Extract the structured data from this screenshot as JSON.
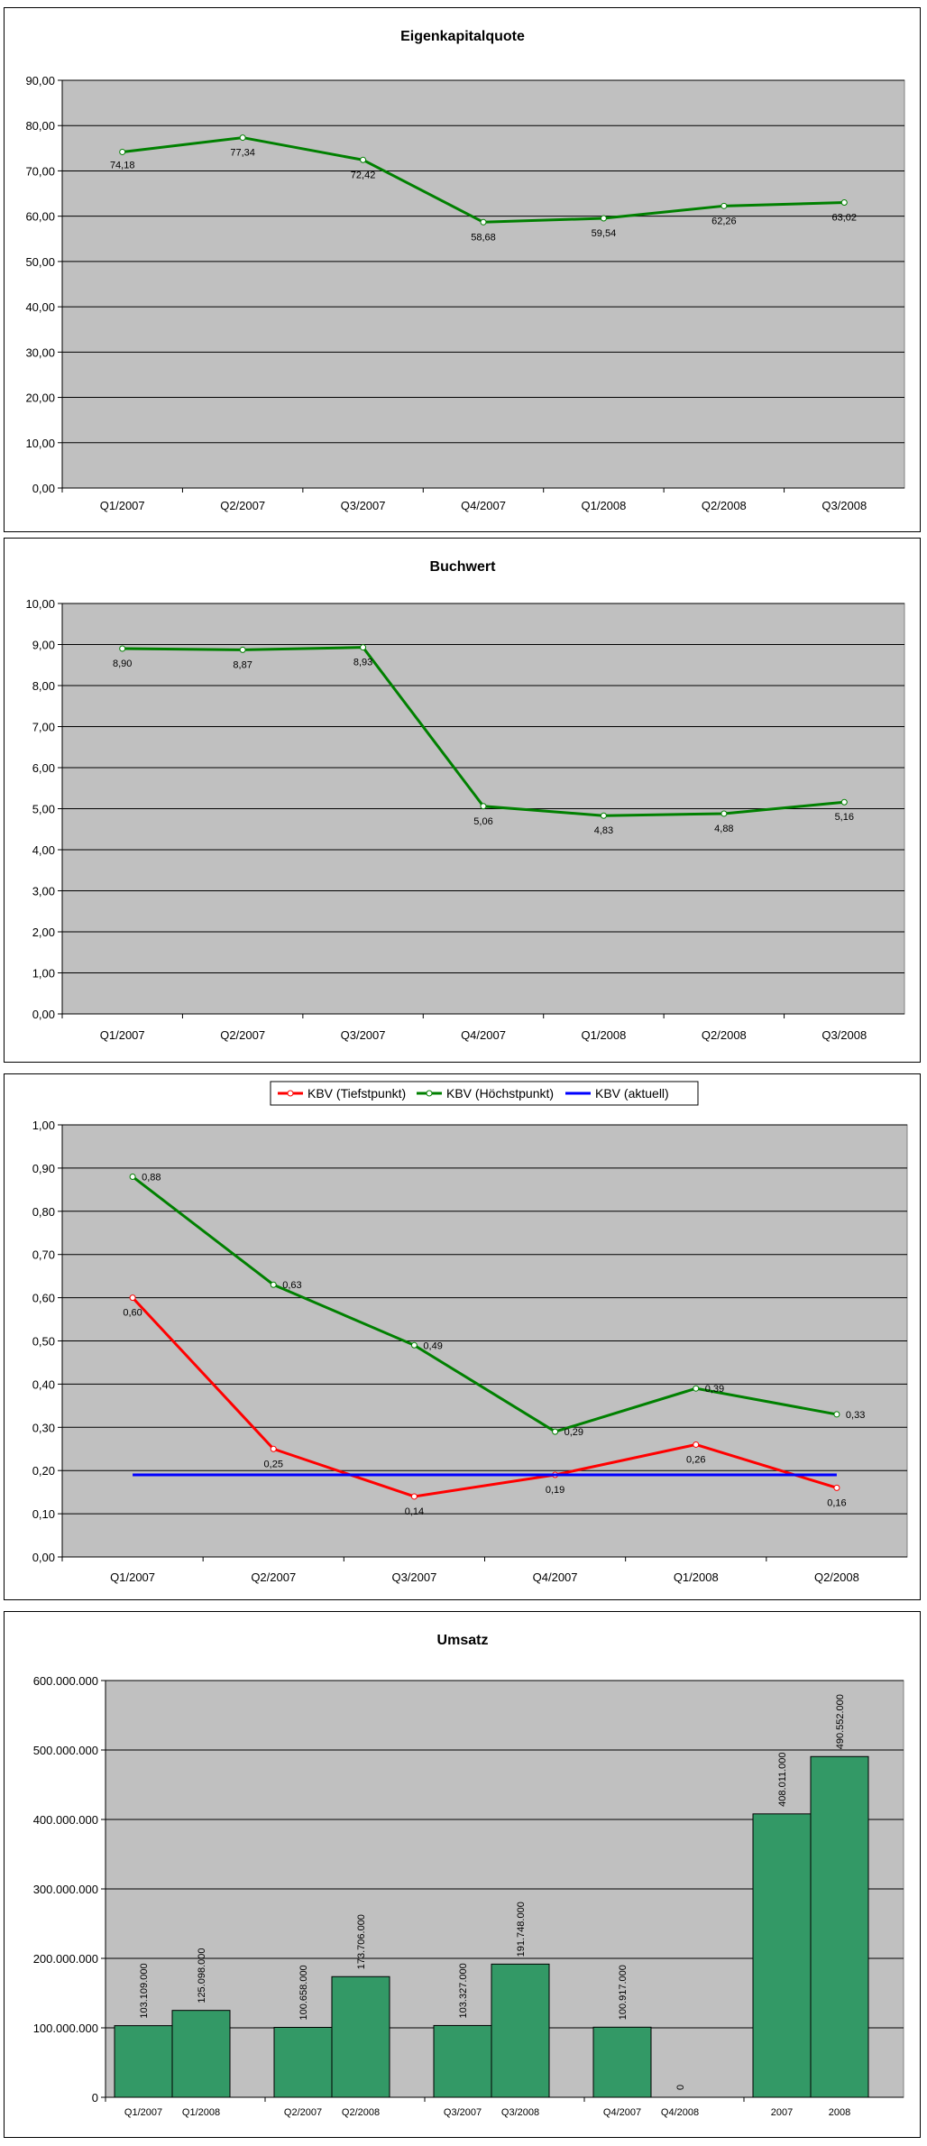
{
  "chart_data": [
    {
      "type": "line",
      "title": "Eigenkapitalquote",
      "categories": [
        "Q1/2007",
        "Q2/2007",
        "Q3/2007",
        "Q4/2007",
        "Q1/2008",
        "Q2/2008",
        "Q3/2008"
      ],
      "series": [
        {
          "values": [
            74.18,
            77.34,
            72.42,
            58.68,
            59.54,
            62.26,
            63.02
          ],
          "labels": [
            "74,18",
            "77,34",
            "72,42",
            "58,68",
            "59,54",
            "62,26",
            "63,02"
          ],
          "color": "#008000"
        }
      ],
      "ylim": [
        0,
        90
      ],
      "yticks": [
        "0,00",
        "10,00",
        "20,00",
        "30,00",
        "40,00",
        "50,00",
        "60,00",
        "70,00",
        "80,00",
        "90,00"
      ],
      "grid": true,
      "plot_bg": "#c0c0c0"
    },
    {
      "type": "line",
      "title": "Buchwert",
      "categories": [
        "Q1/2007",
        "Q2/2007",
        "Q3/2007",
        "Q4/2007",
        "Q1/2008",
        "Q2/2008",
        "Q3/2008"
      ],
      "series": [
        {
          "values": [
            8.9,
            8.87,
            8.93,
            5.06,
            4.83,
            4.88,
            5.16
          ],
          "labels": [
            "8,90",
            "8,87",
            "8,93",
            "5,06",
            "4,83",
            "4,88",
            "5,16"
          ],
          "color": "#008000"
        }
      ],
      "ylim": [
        0,
        10
      ],
      "yticks": [
        "0,00",
        "1,00",
        "2,00",
        "3,00",
        "4,00",
        "5,00",
        "6,00",
        "7,00",
        "8,00",
        "9,00",
        "10,00"
      ],
      "grid": true,
      "plot_bg": "#c0c0c0"
    },
    {
      "type": "line",
      "title": "",
      "categories": [
        "Q1/2007",
        "Q2/2007",
        "Q3/2007",
        "Q4/2007",
        "Q1/2008",
        "Q2/2008"
      ],
      "series": [
        {
          "name": "KBV (Tiefstpunkt)",
          "values": [
            0.6,
            0.25,
            0.14,
            0.19,
            0.26,
            0.16
          ],
          "labels": [
            "0,60",
            "0,25",
            "0,14",
            "0,19",
            "0,26",
            "0,16"
          ],
          "color": "#ff0000"
        },
        {
          "name": "KBV (Höchstpunkt)",
          "values": [
            0.88,
            0.63,
            0.49,
            0.29,
            0.39,
            0.33
          ],
          "labels": [
            "0,88",
            "0,63",
            "0,49",
            "0,29",
            "0,39",
            "0,33"
          ],
          "color": "#008000"
        },
        {
          "name": "KBV (aktuell)",
          "values": [
            0.19,
            0.19,
            0.19,
            0.19,
            0.19,
            0.19
          ],
          "labels": [],
          "color": "#0000ff"
        }
      ],
      "ylim": [
        0,
        1
      ],
      "yticks": [
        "0,00",
        "0,10",
        "0,20",
        "0,30",
        "0,40",
        "0,50",
        "0,60",
        "0,70",
        "0,80",
        "0,90",
        "1,00"
      ],
      "grid": true,
      "legend": "top",
      "plot_bg": "#c0c0c0"
    },
    {
      "type": "bar",
      "title": "Umsatz",
      "groups": [
        {
          "bars": [
            {
              "category": "Q1/2007",
              "value": 103109000,
              "label": "103.109.000"
            },
            {
              "category": "Q1/2008",
              "value": 125098000,
              "label": "125.098.000"
            }
          ]
        },
        {
          "bars": [
            {
              "category": "Q2/2007",
              "value": 100658000,
              "label": "100.658.000"
            },
            {
              "category": "Q2/2008",
              "value": 173706000,
              "label": "173.706.000"
            }
          ]
        },
        {
          "bars": [
            {
              "category": "Q3/2007",
              "value": 103327000,
              "label": "103.327.000"
            },
            {
              "category": "Q3/2008",
              "value": 191748000,
              "label": "191.748.000"
            }
          ]
        },
        {
          "bars": [
            {
              "category": "Q4/2007",
              "value": 100917000,
              "label": "100.917.000"
            },
            {
              "category": "Q4/2008",
              "value": 0,
              "label": "0"
            }
          ]
        },
        {
          "bars": [
            {
              "category": "2007",
              "value": 408011000,
              "label": "408.011.000"
            },
            {
              "category": "2008",
              "value": 490552000,
              "label": "490.552.000"
            }
          ]
        }
      ],
      "ylim": [
        0,
        600000000
      ],
      "yticks": [
        "0",
        "100.000.000",
        "200.000.000",
        "300.000.000",
        "400.000.000",
        "500.000.000",
        "600.000.000"
      ],
      "grid": true,
      "bar_color": "#339966",
      "plot_bg": "#c0c0c0"
    }
  ]
}
